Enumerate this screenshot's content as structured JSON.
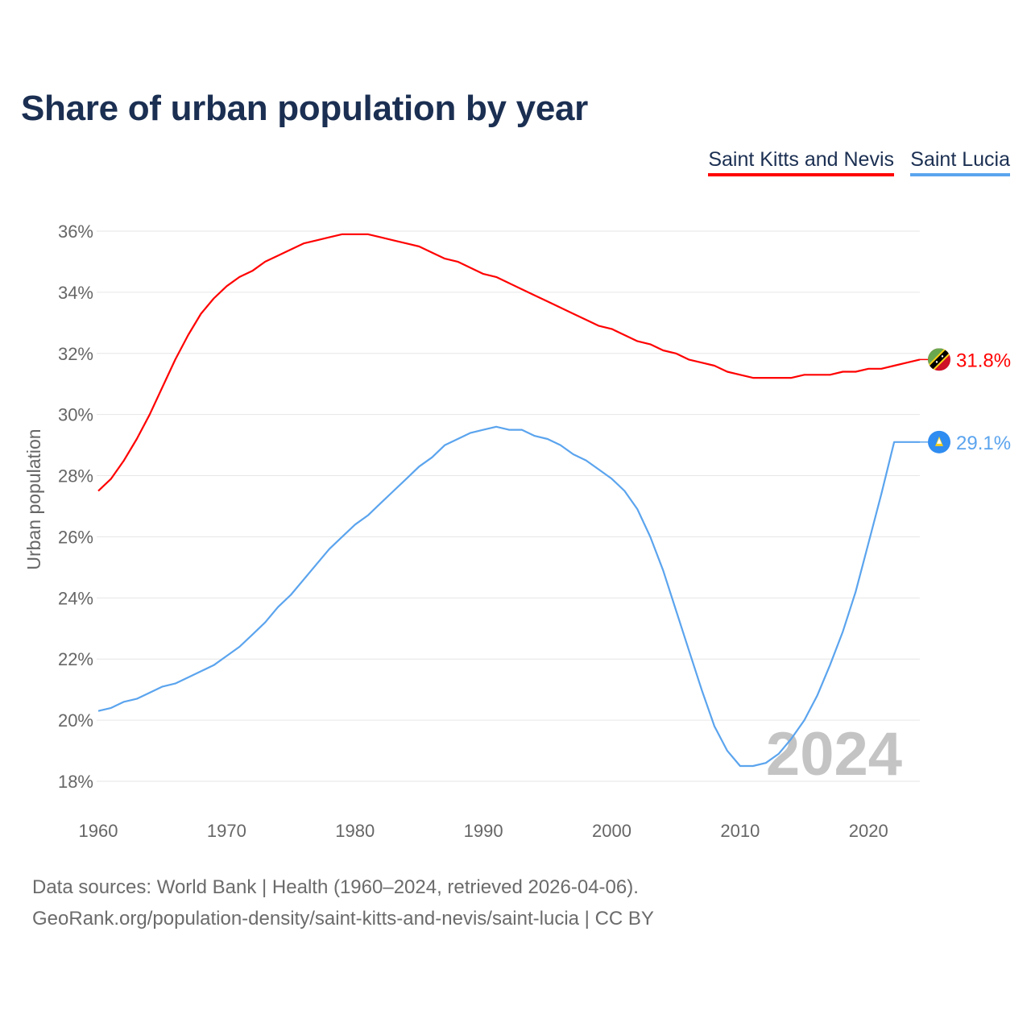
{
  "title": "Share of urban population by year",
  "footer": {
    "line1": "Data sources: World Bank | Health (1960–2024, retrieved 2026-04-06).",
    "line2": "GeoRank.org/population-density/saint-kitts-and-nevis/saint-lucia | CC BY"
  },
  "chart_data": {
    "type": "line",
    "title": "Share of urban population by year",
    "xlabel": "",
    "ylabel": "Urban population",
    "xlim": [
      1960,
      2024
    ],
    "ylim": [
      18,
      36
    ],
    "x_ticks": [
      "1960",
      "1970",
      "1980",
      "1990",
      "2000",
      "2010",
      "2020"
    ],
    "y_ticks": [
      "18%",
      "20%",
      "22%",
      "24%",
      "26%",
      "28%",
      "30%",
      "32%",
      "34%",
      "36%"
    ],
    "grid": true,
    "legend_position": "top-right",
    "year_watermark": "2024",
    "x": [
      1960,
      1961,
      1962,
      1963,
      1964,
      1965,
      1966,
      1967,
      1968,
      1969,
      1970,
      1971,
      1972,
      1973,
      1974,
      1975,
      1976,
      1977,
      1978,
      1979,
      1980,
      1981,
      1982,
      1983,
      1984,
      1985,
      1986,
      1987,
      1988,
      1989,
      1990,
      1991,
      1992,
      1993,
      1994,
      1995,
      1996,
      1997,
      1998,
      1999,
      2000,
      2001,
      2002,
      2003,
      2004,
      2005,
      2006,
      2007,
      2008,
      2009,
      2010,
      2011,
      2012,
      2013,
      2014,
      2015,
      2016,
      2017,
      2018,
      2019,
      2020,
      2021,
      2022,
      2023,
      2024
    ],
    "series": [
      {
        "name": "Saint Kitts and Nevis",
        "color": "#ff0000",
        "end_label": "31.8%",
        "values": [
          27.5,
          27.9,
          28.5,
          29.2,
          30.0,
          30.9,
          31.8,
          32.6,
          33.3,
          33.8,
          34.2,
          34.5,
          34.7,
          35.0,
          35.2,
          35.4,
          35.6,
          35.7,
          35.8,
          35.9,
          35.9,
          35.9,
          35.8,
          35.7,
          35.6,
          35.5,
          35.3,
          35.1,
          35.0,
          34.8,
          34.6,
          34.5,
          34.3,
          34.1,
          33.9,
          33.7,
          33.5,
          33.3,
          33.1,
          32.9,
          32.8,
          32.6,
          32.4,
          32.3,
          32.1,
          32.0,
          31.8,
          31.7,
          31.6,
          31.4,
          31.3,
          31.2,
          31.2,
          31.2,
          31.2,
          31.3,
          31.3,
          31.3,
          31.4,
          31.4,
          31.5,
          31.5,
          31.6,
          31.7,
          31.8
        ]
      },
      {
        "name": "Saint Lucia",
        "color": "#5ba4ee",
        "end_label": "29.1%",
        "values": [
          20.3,
          20.4,
          20.6,
          20.7,
          20.9,
          21.1,
          21.2,
          21.4,
          21.6,
          21.8,
          22.1,
          22.4,
          22.8,
          23.2,
          23.7,
          24.1,
          24.6,
          25.1,
          25.6,
          26.0,
          26.4,
          26.7,
          27.1,
          27.5,
          27.9,
          28.3,
          28.6,
          29.0,
          29.2,
          29.4,
          29.5,
          29.6,
          29.5,
          29.5,
          29.3,
          29.2,
          29.0,
          28.7,
          28.5,
          28.2,
          27.9,
          27.5,
          26.9,
          26.0,
          24.9,
          23.6,
          22.3,
          21.0,
          19.8,
          19.0,
          18.5,
          18.5,
          18.6,
          18.9,
          19.4,
          20.0,
          20.8,
          21.8,
          22.9,
          24.2,
          25.8,
          27.4,
          29.1,
          29.1,
          29.1
        ]
      }
    ]
  }
}
